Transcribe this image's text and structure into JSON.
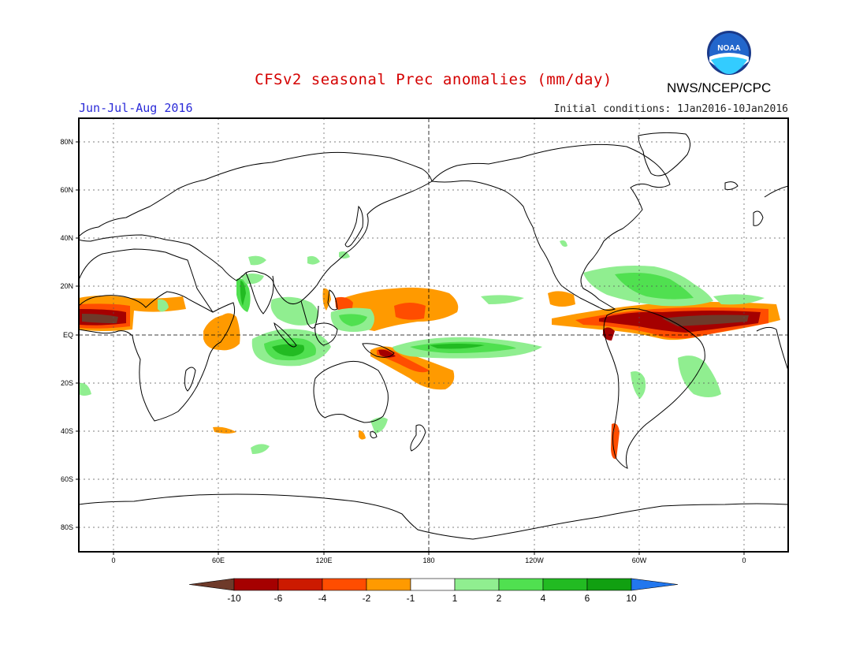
{
  "header": {
    "title": "CFSv2 seasonal Prec anomalies (mm/day)",
    "organization": "NWS/NCEP/CPC",
    "season": "Jun-Jul-Aug 2016",
    "initial_conditions": "Initial conditions: 1Jan2016-10Jan2016",
    "logo_text": "NOAA"
  },
  "map": {
    "lat_ticks": [
      "80N",
      "60N",
      "40N",
      "20N",
      "EQ",
      "20S",
      "40S",
      "60S",
      "80S"
    ],
    "lon_ticks": [
      "0",
      "60E",
      "120E",
      "180",
      "120W",
      "60W",
      "0"
    ],
    "colors": {
      "continent_lines": "#000000",
      "grid": "#555555"
    }
  },
  "colorbar": {
    "labels": [
      "-10",
      "-6",
      "-4",
      "-2",
      "-1",
      "1",
      "2",
      "4",
      "6",
      "10"
    ],
    "colors": [
      "#6e3a2a",
      "#a50000",
      "#cc1a00",
      "#ff4d00",
      "#ff9a00",
      "#ffffff",
      "#90ee90",
      "#50e050",
      "#22bb22",
      "#11a011",
      "#2277ee"
    ]
  },
  "chart_data": {
    "type": "heatmap",
    "title": "CFSv2 seasonal Prec anomalies (mm/day)",
    "units": "mm/day",
    "levels": [
      -10,
      -6,
      -4,
      -2,
      -1,
      1,
      2,
      4,
      6,
      10
    ],
    "regions": [
      {
        "name": "Tropical Atlantic ITCZ east of West Africa",
        "sign": "dry",
        "max_magnitude": "-6 to -10"
      },
      {
        "name": "Tropical Atlantic ITCZ off South America",
        "sign": "dry",
        "max_magnitude": "-6 to -10"
      },
      {
        "name": "Northern South America / Caribbean coast",
        "sign": "dry",
        "max_magnitude": "-6 to -10"
      },
      {
        "name": "Western Indian Ocean (off Somalia)",
        "sign": "dry",
        "max_magnitude": "-2"
      },
      {
        "name": "Western North Pacific",
        "sign": "dry",
        "max_magnitude": "-4"
      },
      {
        "name": "Southwest Pacific near New Guinea",
        "sign": "dry",
        "max_magnitude": "-6"
      },
      {
        "name": "Eastern Indian Ocean / Maritime Continent",
        "sign": "wet",
        "max_magnitude": "4 to 6"
      },
      {
        "name": "Central equatorial Pacific south of equator",
        "sign": "wet",
        "max_magnitude": "4 to 6"
      },
      {
        "name": "Caribbean / Western North Atlantic",
        "sign": "wet",
        "max_magnitude": "2 to 4"
      },
      {
        "name": "Southwest Atlantic off Brazil",
        "sign": "wet",
        "max_magnitude": "2"
      }
    ]
  }
}
